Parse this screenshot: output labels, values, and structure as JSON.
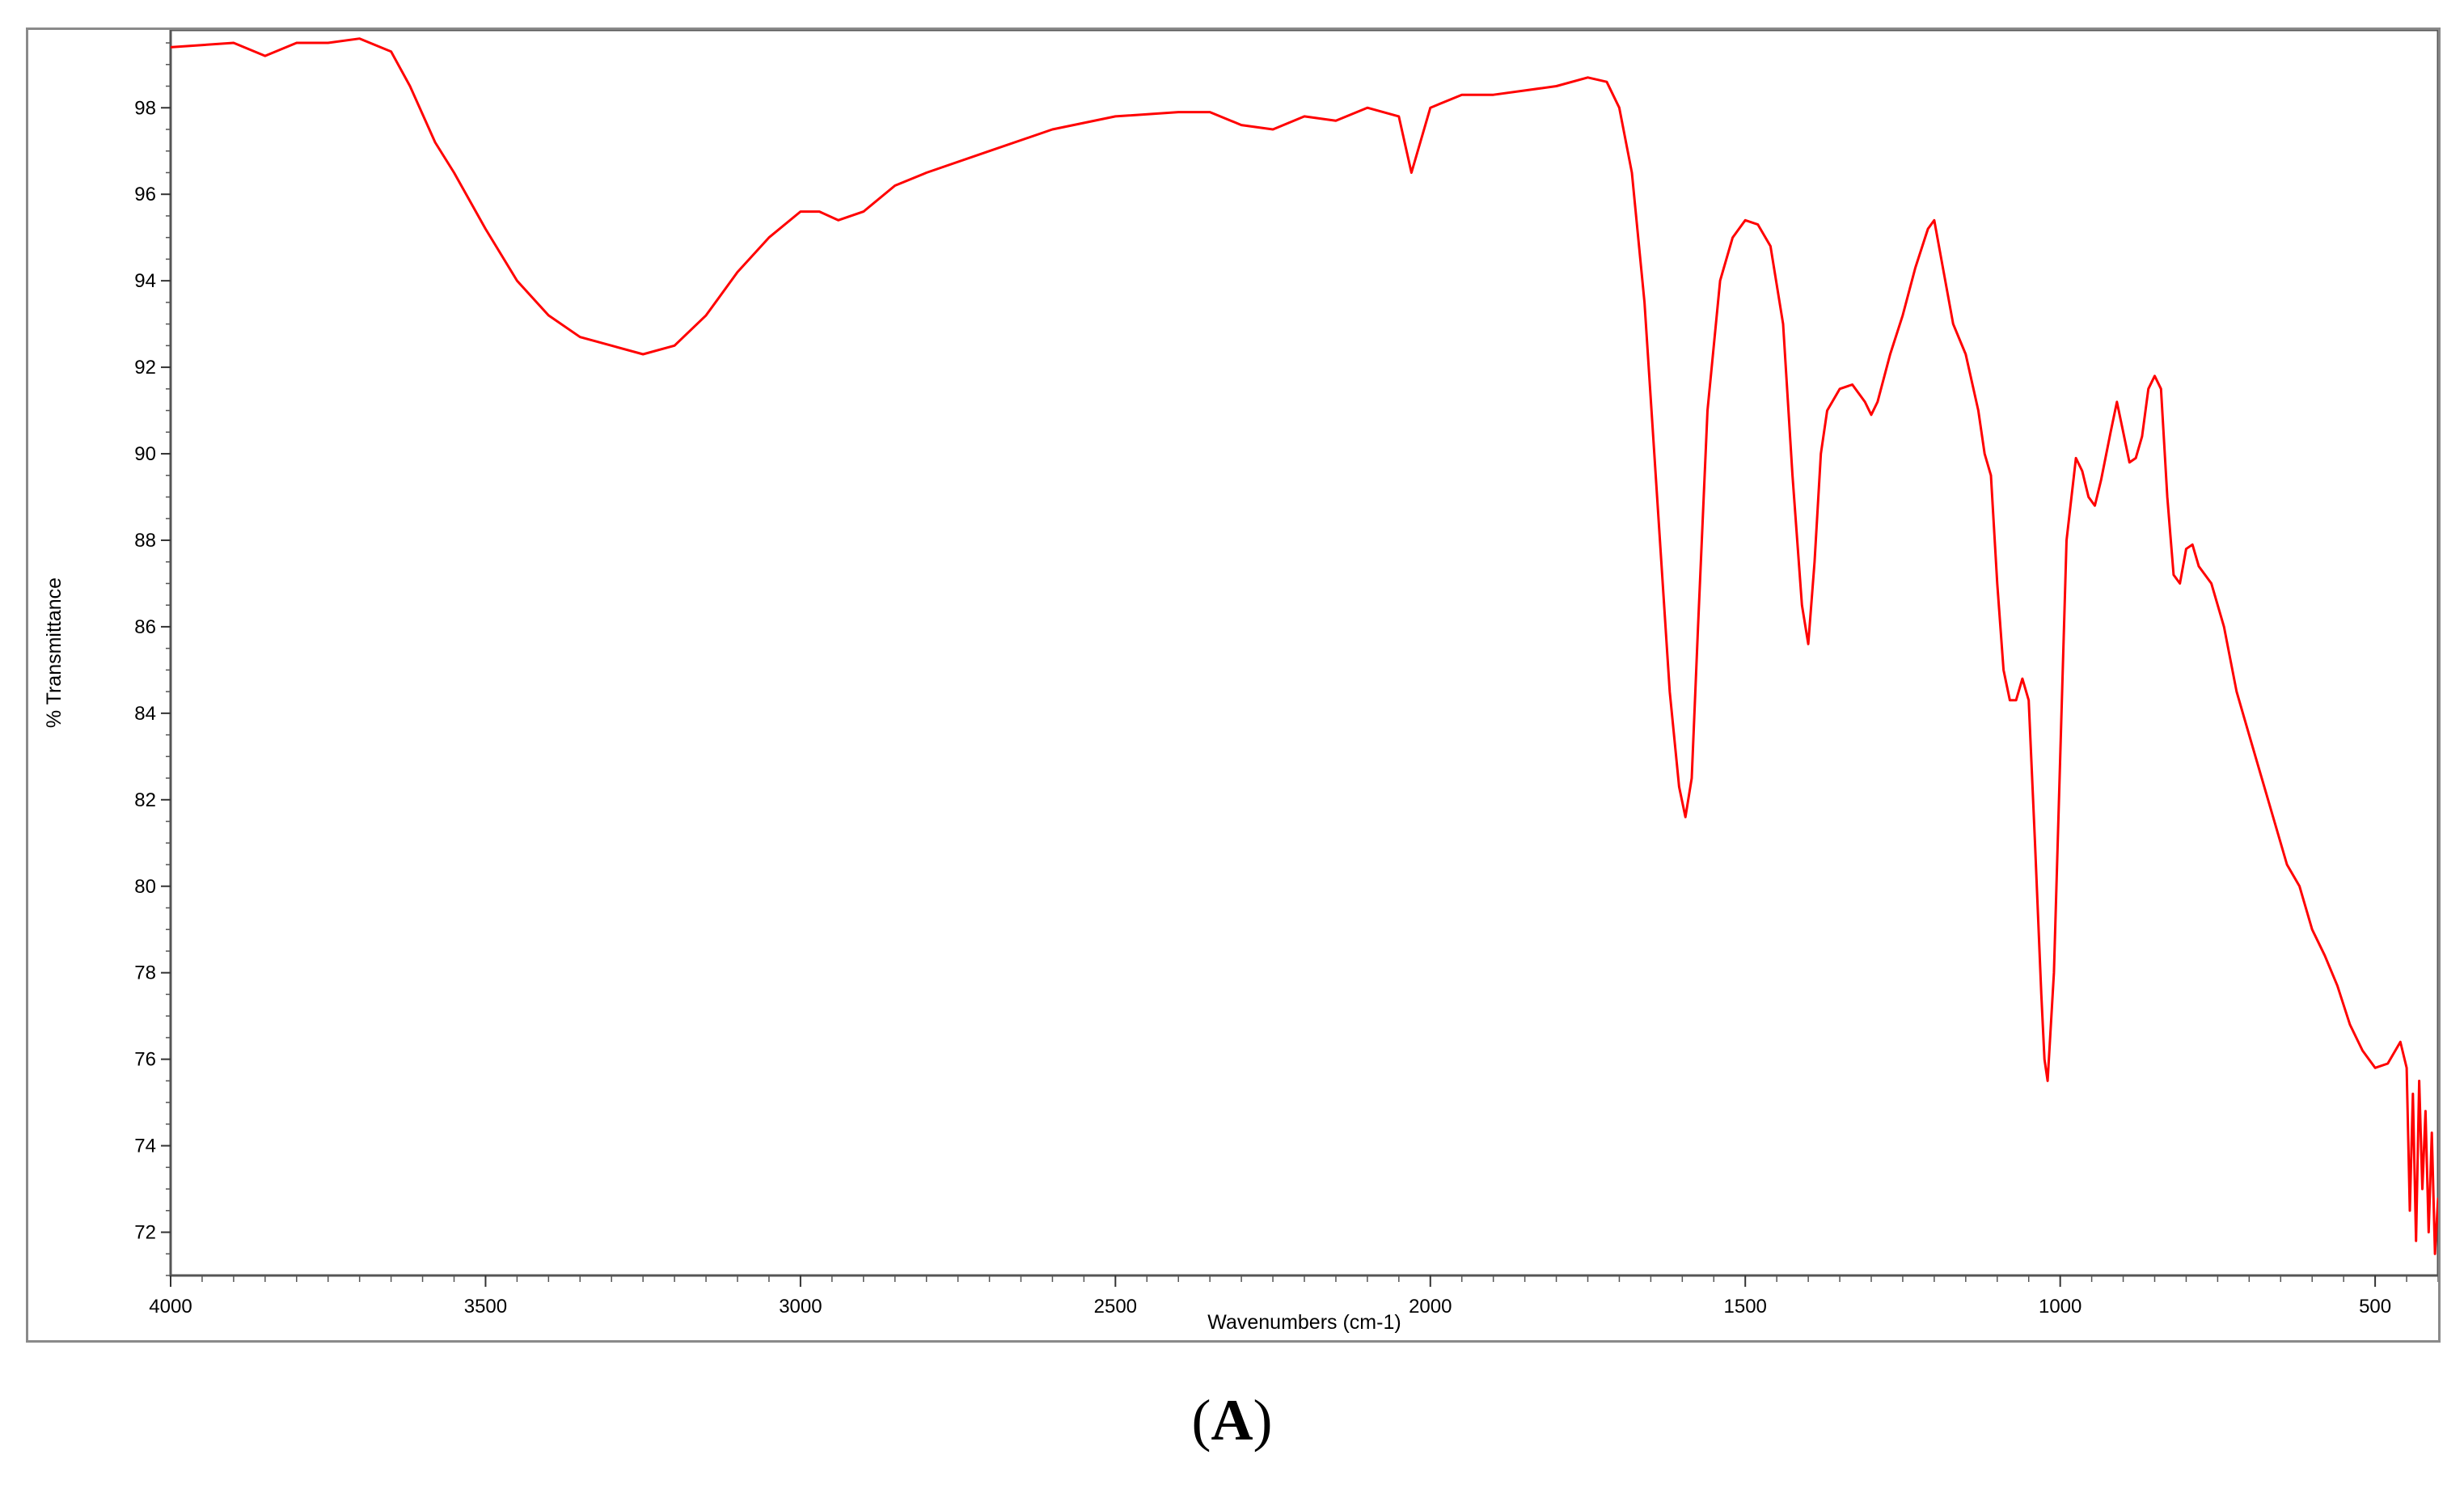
{
  "caption": {
    "open": "(",
    "letter": "A",
    "close": ")"
  },
  "chart_data": {
    "type": "line",
    "title": "",
    "xlabel": "Wavenumbers (cm-1)",
    "ylabel": "% Transmittance",
    "xlim": [
      4000,
      400
    ],
    "ylim": [
      71,
      99.8
    ],
    "x_reversed": true,
    "grid": false,
    "line_color": "#ff0000",
    "x_ticks": [
      4000,
      3500,
      3000,
      2500,
      2000,
      1500,
      1000,
      500
    ],
    "y_ticks": [
      72,
      74,
      76,
      78,
      80,
      82,
      84,
      86,
      88,
      90,
      92,
      94,
      96,
      98
    ],
    "series": [
      {
        "name": "",
        "x": [
          4000,
          3900,
          3850,
          3800,
          3750,
          3700,
          3650,
          3620,
          3580,
          3550,
          3500,
          3450,
          3400,
          3350,
          3300,
          3250,
          3200,
          3150,
          3100,
          3050,
          3000,
          2970,
          2940,
          2900,
          2850,
          2800,
          2700,
          2600,
          2500,
          2400,
          2350,
          2300,
          2250,
          2200,
          2150,
          2100,
          2050,
          2030,
          2000,
          1950,
          1900,
          1850,
          1800,
          1750,
          1720,
          1700,
          1680,
          1660,
          1640,
          1620,
          1605,
          1595,
          1585,
          1575,
          1560,
          1540,
          1520,
          1500,
          1480,
          1460,
          1440,
          1425,
          1410,
          1400,
          1390,
          1380,
          1370,
          1350,
          1330,
          1310,
          1300,
          1290,
          1270,
          1250,
          1230,
          1210,
          1200,
          1190,
          1170,
          1150,
          1130,
          1120,
          1110,
          1100,
          1090,
          1080,
          1070,
          1060,
          1050,
          1040,
          1030,
          1025,
          1020,
          1010,
          1000,
          990,
          975,
          965,
          955,
          945,
          935,
          920,
          910,
          900,
          890,
          880,
          870,
          860,
          850,
          840,
          830,
          820,
          810,
          800,
          790,
          780,
          760,
          740,
          720,
          700,
          680,
          660,
          640,
          620,
          600,
          580,
          560,
          540,
          520,
          500,
          480,
          460,
          450,
          445,
          440,
          435,
          430,
          425,
          420,
          415,
          410,
          405,
          400
        ],
        "values": [
          99.4,
          99.5,
          99.2,
          99.5,
          99.5,
          99.6,
          99.3,
          98.5,
          97.2,
          96.5,
          95.2,
          94.0,
          93.2,
          92.7,
          92.5,
          92.3,
          92.5,
          93.2,
          94.2,
          95.0,
          95.6,
          95.6,
          95.4,
          95.6,
          96.2,
          96.5,
          97.0,
          97.5,
          97.8,
          97.9,
          97.9,
          97.6,
          97.5,
          97.8,
          97.7,
          98.0,
          97.8,
          96.5,
          98.0,
          98.3,
          98.3,
          98.4,
          98.5,
          98.7,
          98.6,
          98.0,
          96.5,
          93.5,
          89.0,
          84.5,
          82.3,
          81.6,
          82.5,
          86.0,
          91.0,
          94.0,
          95.0,
          95.4,
          95.3,
          94.8,
          93.0,
          89.5,
          86.5,
          85.6,
          87.5,
          90.0,
          91.0,
          91.5,
          91.6,
          91.2,
          90.9,
          91.2,
          92.3,
          93.2,
          94.3,
          95.2,
          95.4,
          94.6,
          93.0,
          92.3,
          91.0,
          90.0,
          89.5,
          87.0,
          85.0,
          84.3,
          84.3,
          84.8,
          84.3,
          81.0,
          77.5,
          76.0,
          75.5,
          78.0,
          83.0,
          88.0,
          89.9,
          89.6,
          89.0,
          88.8,
          89.4,
          90.5,
          91.2,
          90.5,
          89.8,
          89.9,
          90.4,
          91.5,
          91.8,
          91.5,
          89.0,
          87.2,
          87.0,
          87.8,
          87.9,
          87.4,
          87.0,
          86.0,
          84.5,
          83.5,
          82.5,
          81.5,
          80.5,
          80.0,
          79.0,
          78.4,
          77.7,
          76.8,
          76.2,
          75.8,
          75.9,
          76.4,
          75.8,
          72.5,
          75.2,
          71.8,
          75.5,
          73.0,
          74.8,
          72.0,
          74.3,
          71.5,
          72.8
        ]
      }
    ]
  }
}
